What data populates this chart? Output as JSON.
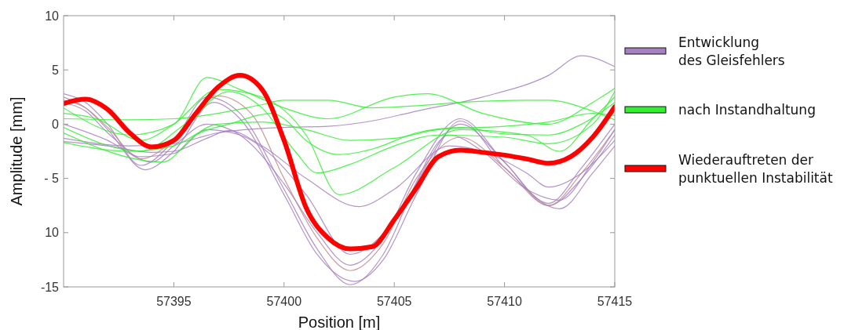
{
  "chart_data": {
    "type": "line",
    "xlabel": "Position [m]",
    "ylabel": "Amplitude [mm]",
    "xlim": [
      57390,
      57415
    ],
    "xticks": [
      57395,
      57400,
      57405,
      57410,
      57415
    ],
    "ylim": [
      -15,
      10
    ],
    "yticks": [
      10,
      5,
      0,
      {
        "value": -5,
        "label": "- 5"
      },
      {
        "value": -10,
        "label": "10"
      },
      {
        "value": -15,
        "label": "-15"
      }
    ],
    "grid": false,
    "legend": "right",
    "line_style": "solid",
    "marker": "none",
    "series": [
      {
        "name": "Entwicklung\ndes Gleisfehlers",
        "color": "#a680c0",
        "x": [
          57390,
          57391,
          57392,
          57393.5,
          57395,
          57396.5,
          57398,
          57400,
          57401.5,
          57403,
          57404.5,
          57406,
          57408,
          57410,
          57412,
          57413.5,
          57415
        ],
        "values": [
          2.8,
          2.0,
          0.0,
          -3.8,
          -1.5,
          2.5,
          1.0,
          -6.0,
          -11.5,
          -14.8,
          -12.0,
          -5.5,
          0.0,
          -3.5,
          -7.5,
          -5.0,
          -1.0
        ]
      },
      {
        "color": "#a680c0",
        "x": [
          57390,
          57391,
          57392,
          57393.7,
          57395,
          57396.8,
          57398,
          57400,
          57401.5,
          57403.2,
          57404.5,
          57406,
          57408,
          57410,
          57412.5,
          57414,
          57415
        ],
        "values": [
          2.5,
          1.5,
          -0.5,
          -4.2,
          -2.5,
          2.0,
          0.5,
          -6.5,
          -12.0,
          -14.5,
          -12.5,
          -6.5,
          0.3,
          -4.0,
          -7.8,
          -4.5,
          -2.0
        ]
      },
      {
        "color": "#c48a8a",
        "x": [
          57390,
          57391,
          57392,
          57393.5,
          57395,
          57397,
          57398.5,
          57400,
          57401.5,
          57403,
          57404.5,
          57406,
          57408,
          57410,
          57412,
          57413.5,
          57415
        ],
        "values": [
          2.2,
          1.5,
          -0.3,
          -3.2,
          -1.5,
          2.6,
          1.0,
          -5.0,
          -10.5,
          -13.5,
          -11.0,
          -5.0,
          -1.2,
          -4.0,
          -7.5,
          -4.5,
          -0.5
        ]
      },
      {
        "color": "#a680c0",
        "x": [
          57390,
          57391,
          57392,
          57394,
          57395,
          57396.5,
          57398,
          57400,
          57401.5,
          57403,
          57404.5,
          57406,
          57408,
          57410,
          57412,
          57413.5,
          57415
        ],
        "values": [
          2.0,
          1.2,
          -0.8,
          -3.5,
          -2.0,
          0.0,
          -1.0,
          -5.5,
          -10.0,
          -13.0,
          -10.5,
          -4.5,
          0.5,
          -3.5,
          -7.3,
          -4.0,
          0.0
        ]
      },
      {
        "color": "#a680c0",
        "x": [
          57390,
          57393,
          57395,
          57397,
          57400,
          57402,
          57404,
          57406,
          57409,
          57412,
          57413.5,
          57415
        ],
        "values": [
          -1.3,
          -2.0,
          -1.8,
          -0.8,
          -0.3,
          -0.2,
          0.3,
          1.2,
          2.5,
          4.5,
          6.3,
          5.3
        ]
      },
      {
        "color": "#a680c0",
        "x": [
          57390,
          57392,
          57394,
          57395,
          57396.5,
          57397.5,
          57399,
          57401,
          57403.4,
          57405,
          57407.5,
          57409,
          57411,
          57412,
          57413.5,
          57415
        ],
        "values": [
          -1.6,
          -2.0,
          -2.6,
          -2.5,
          -1.3,
          -0.6,
          -2.0,
          -5.0,
          -7.6,
          -6.0,
          -2.0,
          -2.5,
          -4.5,
          -5.8,
          -4.5,
          -1.5
        ]
      },
      {
        "color": "#a680c0",
        "x": [
          57390,
          57392,
          57393.5,
          57395,
          57396.5,
          57398,
          57399.5,
          57401,
          57403,
          57405,
          57407.5,
          57409,
          57411,
          57412.5,
          57414,
          57415
        ],
        "values": [
          0.0,
          -1.5,
          -3.0,
          -2.7,
          -0.5,
          -1.0,
          -3.0,
          -6.5,
          -12.0,
          -9.0,
          -1.0,
          -2.5,
          -6.0,
          -7.0,
          -3.5,
          -0.5
        ]
      },
      {
        "name": "nach Instandhaltung",
        "color": "#33ee33",
        "x": [
          57390,
          57393,
          57395,
          57397,
          57399,
          57400,
          57402,
          57404,
          57406,
          57408,
          57411,
          57412,
          57414,
          57415
        ],
        "values": [
          0.5,
          0.4,
          0.5,
          1.0,
          1.8,
          2.2,
          2.2,
          1.5,
          1.7,
          2.0,
          2.2,
          2.2,
          1.2,
          0.4
        ]
      },
      {
        "color": "#33ee33",
        "x": [
          57390,
          57393,
          57395,
          57396.5,
          57398,
          57400,
          57402,
          57405,
          57406.5,
          57409,
          57412,
          57414,
          57415
        ],
        "values": [
          1.5,
          -1.0,
          0.0,
          4.3,
          3.2,
          1.5,
          0.5,
          2.5,
          2.8,
          1.0,
          0.0,
          2.0,
          3.3
        ]
      },
      {
        "color": "#33ee33",
        "x": [
          57390,
          57391.5,
          57393.5,
          57395,
          57397,
          57399,
          57401,
          57402.5,
          57405,
          57408,
          57411,
          57412.5,
          57414,
          57415
        ],
        "values": [
          1.0,
          0.5,
          -1.5,
          0.0,
          3.2,
          2.5,
          -1.0,
          -6.5,
          -4.0,
          -0.5,
          -1.0,
          -2.5,
          0.5,
          2.5
        ]
      },
      {
        "color": "#33ee33",
        "x": [
          57390,
          57393.5,
          57395.5,
          57397.5,
          57399,
          57400.5,
          57401.5,
          57403,
          57405,
          57407,
          57410,
          57412,
          57414,
          57415
        ],
        "values": [
          -0.3,
          -2.5,
          0.0,
          3.0,
          1.5,
          -2.5,
          -4.5,
          -3.7,
          -2.0,
          -1.0,
          -1.2,
          -1.8,
          0.0,
          3.0
        ]
      },
      {
        "color": "#33ee33",
        "x": [
          57390,
          57393.5,
          57394.5,
          57396,
          57397.5,
          57399.5,
          57400,
          57401,
          57402.5,
          57404,
          57406,
          57408,
          57410,
          57412,
          57413.5,
          57415
        ],
        "values": [
          -0.8,
          -3.3,
          -3.5,
          -1.0,
          0.0,
          1.0,
          0.5,
          -1.5,
          -2.8,
          -2.3,
          -0.8,
          -0.3,
          -0.9,
          -1.0,
          0.0,
          2.0
        ]
      },
      {
        "color": "#33ee33",
        "x": [
          57390,
          57393,
          57395,
          57397,
          57399,
          57401,
          57403,
          57405,
          57407,
          57410,
          57412,
          57414,
          57415
        ],
        "values": [
          -1.7,
          -2.5,
          -2.0,
          0.0,
          0.2,
          -0.5,
          -1.5,
          -1.3,
          -0.5,
          -0.2,
          0.2,
          1.0,
          0.8
        ]
      },
      {
        "name": "Wiederauftreten der\npunktuellen Instabilität",
        "color": "#ff0000",
        "x": [
          57390,
          57391,
          57392,
          57393,
          57394,
          57395,
          57396,
          57397,
          57398,
          57399,
          57400,
          57401,
          57402,
          57403,
          57404,
          57405,
          57406,
          57407,
          57408,
          57409,
          57410,
          57411,
          57412,
          57413,
          57414,
          57415
        ],
        "values": [
          1.9,
          2.3,
          1.35,
          -0.8,
          -2.1,
          -1.5,
          1.0,
          3.4,
          4.5,
          3.2,
          -1.5,
          -7.7,
          -10.5,
          -11.5,
          -11.3,
          -8.8,
          -5.9,
          -3.0,
          -2.4,
          -2.6,
          -2.85,
          -3.2,
          -3.6,
          -3.0,
          -1.2,
          1.6
        ]
      }
    ]
  }
}
